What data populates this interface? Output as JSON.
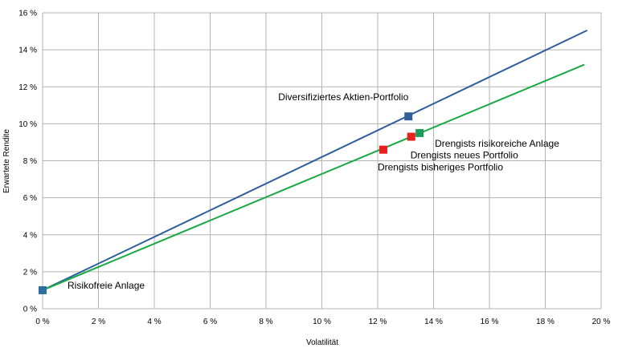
{
  "chart_data": {
    "type": "scatter",
    "xlabel": "Volatilität",
    "ylabel": "Erwartete Rendite",
    "xlim": [
      0,
      20
    ],
    "ylim": [
      0,
      16
    ],
    "x_ticks": [
      "0 %",
      "2 %",
      "4 %",
      "6 %",
      "8 %",
      "10 %",
      "12 %",
      "14 %",
      "16 %",
      "18 %",
      "20 %"
    ],
    "y_ticks": [
      "0 %",
      "2 %",
      "4 %",
      "6 %",
      "8 %",
      "10 %",
      "12 %",
      "14 %",
      "16 %"
    ],
    "grid": true,
    "lines": [
      {
        "color": "#2e5f9c",
        "points": [
          [
            0,
            1.0
          ],
          [
            19.5,
            15.05
          ]
        ]
      },
      {
        "color": "#1aa843",
        "points": [
          [
            0,
            1.0
          ],
          [
            19.4,
            13.2
          ]
        ]
      }
    ],
    "points": [
      {
        "label": "Risikofreie Anlage",
        "x": 0.0,
        "y": 1.0,
        "color": "#2e6fa0"
      },
      {
        "label": "Diversifiziertes Aktien-Portfolio",
        "x": 13.1,
        "y": 10.4,
        "color": "#2e5f9c"
      },
      {
        "label": "Drengists risikoreiche Anlage",
        "x": 13.5,
        "y": 9.5,
        "color": "#1e9a5a"
      },
      {
        "label": "Drengists neues Portfolio",
        "x": 13.2,
        "y": 9.3,
        "color": "#e8201e"
      },
      {
        "label": "Drengists bisheriges Portfolio",
        "x": 12.2,
        "y": 8.6,
        "color": "#e8201e"
      }
    ]
  }
}
